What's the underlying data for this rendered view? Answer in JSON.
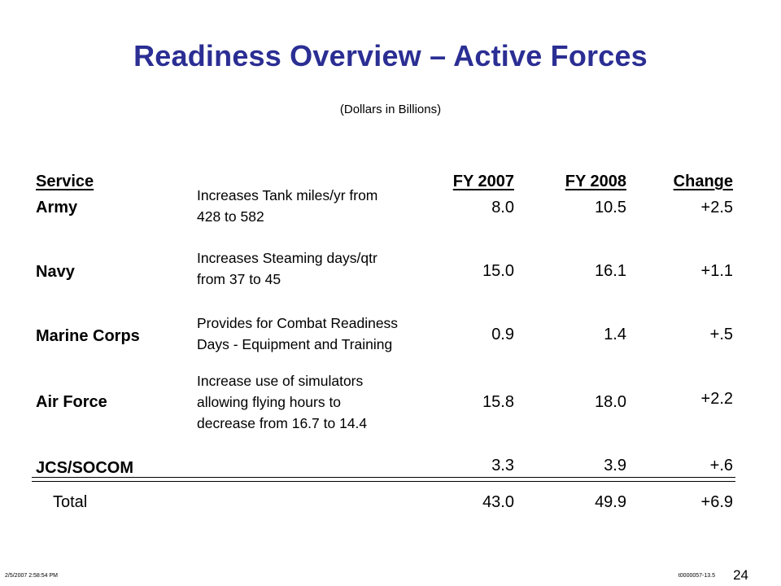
{
  "title": "Readiness Overview – Active Forces",
  "subtitle": "(Dollars in Billions)",
  "table": {
    "headers": {
      "service": "Service",
      "fy2007": "FY 2007",
      "fy2008": "FY 2008",
      "change": "Change"
    },
    "rows": [
      {
        "service": "Army",
        "description": [
          "Increases Tank miles/yr from",
          "428 to 582"
        ],
        "fy2007": "8.0",
        "fy2008": "10.5",
        "change": "+2.5"
      },
      {
        "service": "Navy",
        "description": [
          "Increases Steaming days/qtr",
          "from 37 to 45"
        ],
        "fy2007": "15.0",
        "fy2008": "16.1",
        "change": "+1.1"
      },
      {
        "service": "Marine Corps",
        "description": [
          "Provides for Combat Readiness",
          "Days - Equipment and Training"
        ],
        "fy2007": "0.9",
        "fy2008": "1.4",
        "change": "+.5"
      },
      {
        "service": "Air Force",
        "description": [
          "Increase use of simulators",
          "allowing flying hours to",
          "decrease from 16.7 to 14.4"
        ],
        "fy2007": "15.8",
        "fy2008": "18.0",
        "change": "+2.2"
      },
      {
        "service": "JCS/SOCOM",
        "description": [],
        "fy2007": "3.3",
        "fy2008": "3.9",
        "change": "+.6"
      }
    ],
    "total": {
      "label": "Total",
      "fy2007": "43.0",
      "fy2008": "49.9",
      "change": "+6.9"
    }
  },
  "footer": {
    "timestamp": "2/5/2007 2:58:54 PM",
    "code": "t0000057-13.5",
    "page_number": "24"
  }
}
